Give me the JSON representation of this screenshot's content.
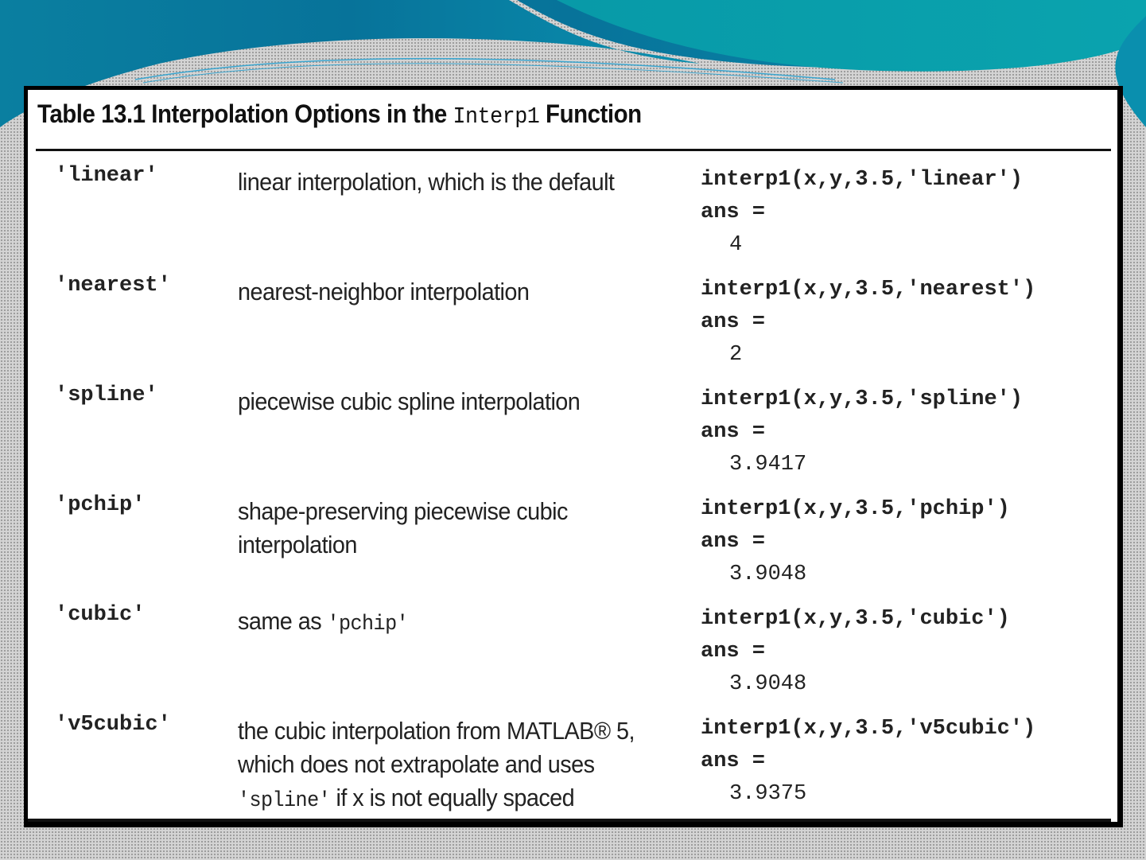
{
  "table": {
    "title_prefix": "Table 13.1  Interpolation Options in the ",
    "title_code": "Interp1",
    "title_suffix": " Function",
    "rows": [
      {
        "option": "'linear'",
        "description": "linear interpolation, which is the default",
        "call": "interp1(x,y,3.5,'linear')",
        "ans_label": "ans =",
        "ans": "4"
      },
      {
        "option": "'nearest'",
        "description": "nearest-neighbor interpolation",
        "call": "interp1(x,y,3.5,'nearest')",
        "ans_label": "ans =",
        "ans": "2"
      },
      {
        "option": "'spline'",
        "description": "piecewise cubic spline interpolation",
        "call": "interp1(x,y,3.5,'spline')",
        "ans_label": "ans =",
        "ans": "3.9417"
      },
      {
        "option": "'pchip'",
        "description": "shape-preserving piecewise cubic interpolation",
        "call": "interp1(x,y,3.5,'pchip')",
        "ans_label": "ans =",
        "ans": "3.9048"
      },
      {
        "option": "'cubic'",
        "description": "same as ",
        "description_code": "'pchip'",
        "call": "interp1(x,y,3.5,'cubic')",
        "ans_label": "ans =",
        "ans": "3.9048"
      },
      {
        "option": "'v5cubic'",
        "description": "the cubic interpolation from MATLAB® 5, which does not extrapolate and uses ",
        "description_code": "'spline'",
        "description_tail": " if x is not equally spaced",
        "call": "interp1(x,y,3.5,'v5cubic')",
        "ans_label": "ans =",
        "ans": "3.9375"
      }
    ]
  },
  "colors": {
    "banner_dark": "#0a6f96",
    "banner_light": "#08a6b0"
  }
}
